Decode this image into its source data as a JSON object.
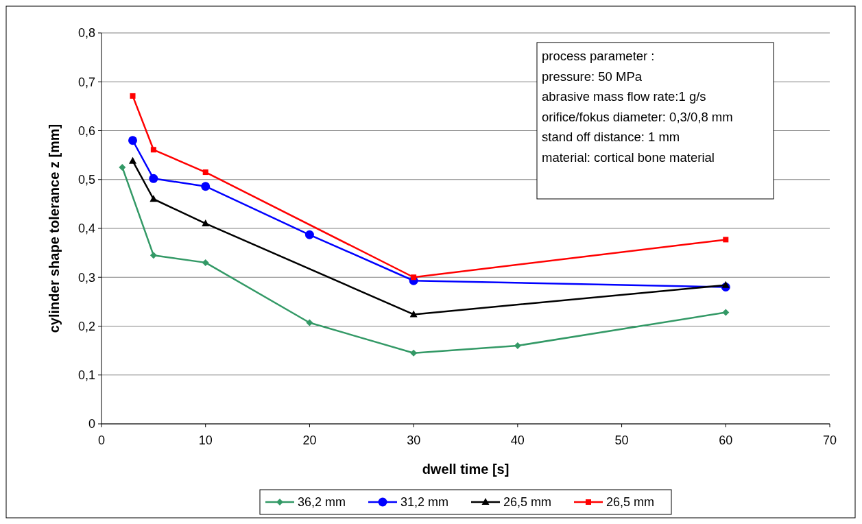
{
  "chart_data": {
    "type": "line",
    "xlabel": "dwell time [s]",
    "ylabel": "cylinder shape tolerance z [mm]",
    "xlim": [
      0,
      70
    ],
    "xticks": [
      0,
      10,
      20,
      30,
      40,
      50,
      60,
      70
    ],
    "ylim": [
      0,
      0.8
    ],
    "yticks": [
      {
        "value": 0,
        "label": "0"
      },
      {
        "value": 0.1,
        "label": "0,1"
      },
      {
        "value": 0.2,
        "label": "0,2"
      },
      {
        "value": 0.3,
        "label": "0,3"
      },
      {
        "value": 0.4,
        "label": "0,4"
      },
      {
        "value": 0.5,
        "label": "0,5"
      },
      {
        "value": 0.6,
        "label": "0,6"
      },
      {
        "value": 0.7,
        "label": "0,7"
      },
      {
        "value": 0.8,
        "label": "0,8"
      }
    ],
    "grid": "y",
    "legend": "bottom",
    "line_style": "solid",
    "annotations": [
      "process parameter :",
      "pressure: 50 MPa",
      "abrasive mass flow rate:1 g/s",
      "orifice/fokus diameter: 0,3/0,8 mm",
      "stand off distance: 1 mm",
      "material: cortical bone material"
    ],
    "series": [
      {
        "name": "36,2 mm",
        "color": "#339966",
        "marker": "diamond",
        "x": [
          2,
          5,
          10,
          20,
          30,
          40,
          60
        ],
        "values": [
          0.525,
          0.345,
          0.33,
          0.207,
          0.145,
          0.16,
          0.228
        ]
      },
      {
        "name": "31,2 mm",
        "color": "#0000ff",
        "marker": "circle",
        "x": [
          3,
          5,
          10,
          20,
          30,
          60
        ],
        "values": [
          0.58,
          0.502,
          0.486,
          0.387,
          0.293,
          0.28
        ]
      },
      {
        "name": "26,5 mm",
        "color": "#000000",
        "marker": "triangle",
        "x": [
          3,
          5,
          10,
          30,
          60
        ],
        "values": [
          0.538,
          0.46,
          0.41,
          0.224,
          0.284
        ]
      },
      {
        "name": "26,5 mm",
        "color": "#ff0000",
        "marker": "square",
        "x": [
          3,
          5,
          10,
          30,
          60
        ],
        "values": [
          0.671,
          0.561,
          0.515,
          0.3,
          0.377
        ]
      }
    ]
  }
}
